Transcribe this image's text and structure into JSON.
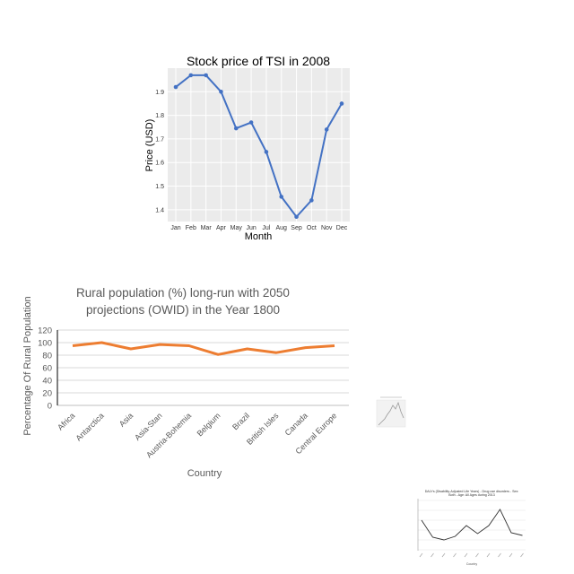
{
  "chart_data": [
    {
      "type": "line",
      "title": "Stock price of TSI in 2008",
      "xlabel": "Month",
      "ylabel": "Price (USD)",
      "categories": [
        "Jan",
        "Feb",
        "Mar",
        "Apr",
        "May",
        "Jun",
        "Jul",
        "Aug",
        "Sep",
        "Oct",
        "Nov",
        "Dec"
      ],
      "values": [
        1.92,
        1.97,
        1.97,
        1.9,
        1.745,
        1.77,
        1.645,
        1.455,
        1.37,
        1.44,
        1.74,
        1.85
      ],
      "ylim": [
        1.35,
        2.0
      ],
      "yticks": [
        "1.4",
        "1.5",
        "1.6",
        "1.7",
        "1.8",
        "1.9"
      ],
      "grid": true,
      "colors": {
        "line": "#4472c4",
        "plot_bg": "#ebebeb",
        "grid": "#ffffff"
      }
    },
    {
      "type": "line",
      "title_lines": [
        "Rural population (%) long-run with 2050",
        "projections (OWID) in the Year 1800"
      ],
      "xlabel": "Country",
      "ylabel": "Percentage Of Rural  Population",
      "categories": [
        "Africa",
        "Antarctica",
        "Asia",
        "Asia-Stan",
        "Austria-Bohemia",
        "Belgium",
        "Brazil",
        "British Isles",
        "Canada",
        "Central Europe"
      ],
      "values": [
        95,
        100,
        90,
        97,
        95,
        81,
        90,
        84,
        92,
        95
      ],
      "ylim": [
        0,
        120
      ],
      "yticks": [
        "0",
        "20",
        "40",
        "60",
        "80",
        "100",
        "120"
      ],
      "grid": true,
      "colors": {
        "line": "#ed7d31",
        "grid": "#d9d9d9"
      }
    }
  ],
  "thumbnails": [
    {
      "type": "line",
      "colors": {
        "line": "#999999"
      }
    },
    {
      "type": "line",
      "title_lines": [
        "DALYs (Disability-Adjusted Life Years) - Drug use disorders - Sex:",
        "Both - Age: All Ages during 2013"
      ],
      "xlabel": "Country",
      "colors": {
        "line": "#333333"
      }
    }
  ]
}
